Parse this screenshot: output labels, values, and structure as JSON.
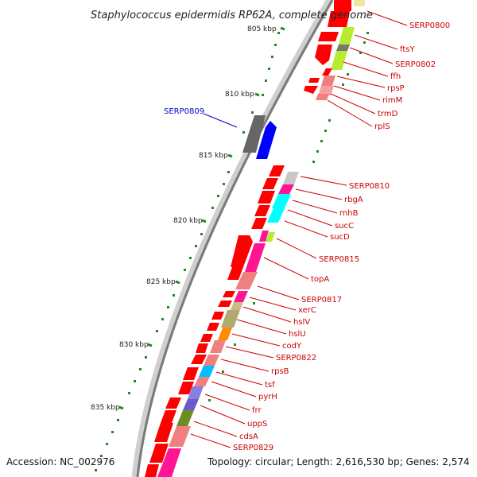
{
  "title": "Staphylococcus epidermidis RP62A, complete genome",
  "accession": "Accession: NC_002976",
  "topology": "Topology: circular; Length: 2,616,530 bp; Genes: 2,574",
  "colors": {
    "arrow": "#ff0000",
    "backbone_light": "#cfcfcf",
    "backbone_dark": "#7a7a7a",
    "tick": "#1f8a1f",
    "label_red": "#cc0000",
    "label_blue": "#0000cc"
  },
  "scale": {
    "ticks": [
      {
        "label": "805 kbp"
      },
      {
        "label": "810 kbp"
      },
      {
        "label": "815 kbp"
      },
      {
        "label": "820 kbp"
      },
      {
        "label": "825 kbp"
      },
      {
        "label": "830 kbp"
      },
      {
        "label": "835 kbp"
      }
    ]
  },
  "genes": [
    {
      "label": "SERP0800",
      "color": "#ffaaaa"
    },
    {
      "label": "ftsY",
      "color": "#b7eb2f"
    },
    {
      "label": "SERP0802",
      "color": "#777777"
    },
    {
      "label": "ffh",
      "color": "#b7eb2f"
    },
    {
      "label": "rpsP",
      "color": "#f08080"
    },
    {
      "label": "rimM",
      "color": "#f4a0a0"
    },
    {
      "label": "trmD",
      "color": "#f08080"
    },
    {
      "label": "rplS",
      "color": "#f4a0a0"
    },
    {
      "label": "SERP0809",
      "color": "#0000ff",
      "highlight": true
    },
    {
      "label": "SERP0810",
      "color": "#c8c8c8"
    },
    {
      "label": "rbgA",
      "color": "#ff1493"
    },
    {
      "label": "rnhB",
      "color": "#f08080"
    },
    {
      "label": "sucC",
      "color": "#00ffff"
    },
    {
      "label": "sucD",
      "color": "#00ffff"
    },
    {
      "label": "SERP0815",
      "color": "#b7eb2f"
    },
    {
      "label": "topA",
      "color": "#ff1493"
    },
    {
      "label": "SERP0817",
      "color": "#f08080"
    },
    {
      "label": "xerC",
      "color": "#ff1493"
    },
    {
      "label": "hslV",
      "color": "#c9b982"
    },
    {
      "label": "hslU",
      "color": "#b0aa70"
    },
    {
      "label": "codY",
      "color": "#ff8c00"
    },
    {
      "label": "SERP0822",
      "color": "#f08080"
    },
    {
      "label": "rpsB",
      "color": "#f08080"
    },
    {
      "label": "tsf",
      "color": "#00bfff"
    },
    {
      "label": "pyrH",
      "color": "#f08080"
    },
    {
      "label": "frr",
      "color": "#8a7fe0"
    },
    {
      "label": "uppS",
      "color": "#6a5acd"
    },
    {
      "label": "cdsA",
      "color": "#6b8e23"
    },
    {
      "label": "SERP0829",
      "color": "#f08080"
    }
  ]
}
